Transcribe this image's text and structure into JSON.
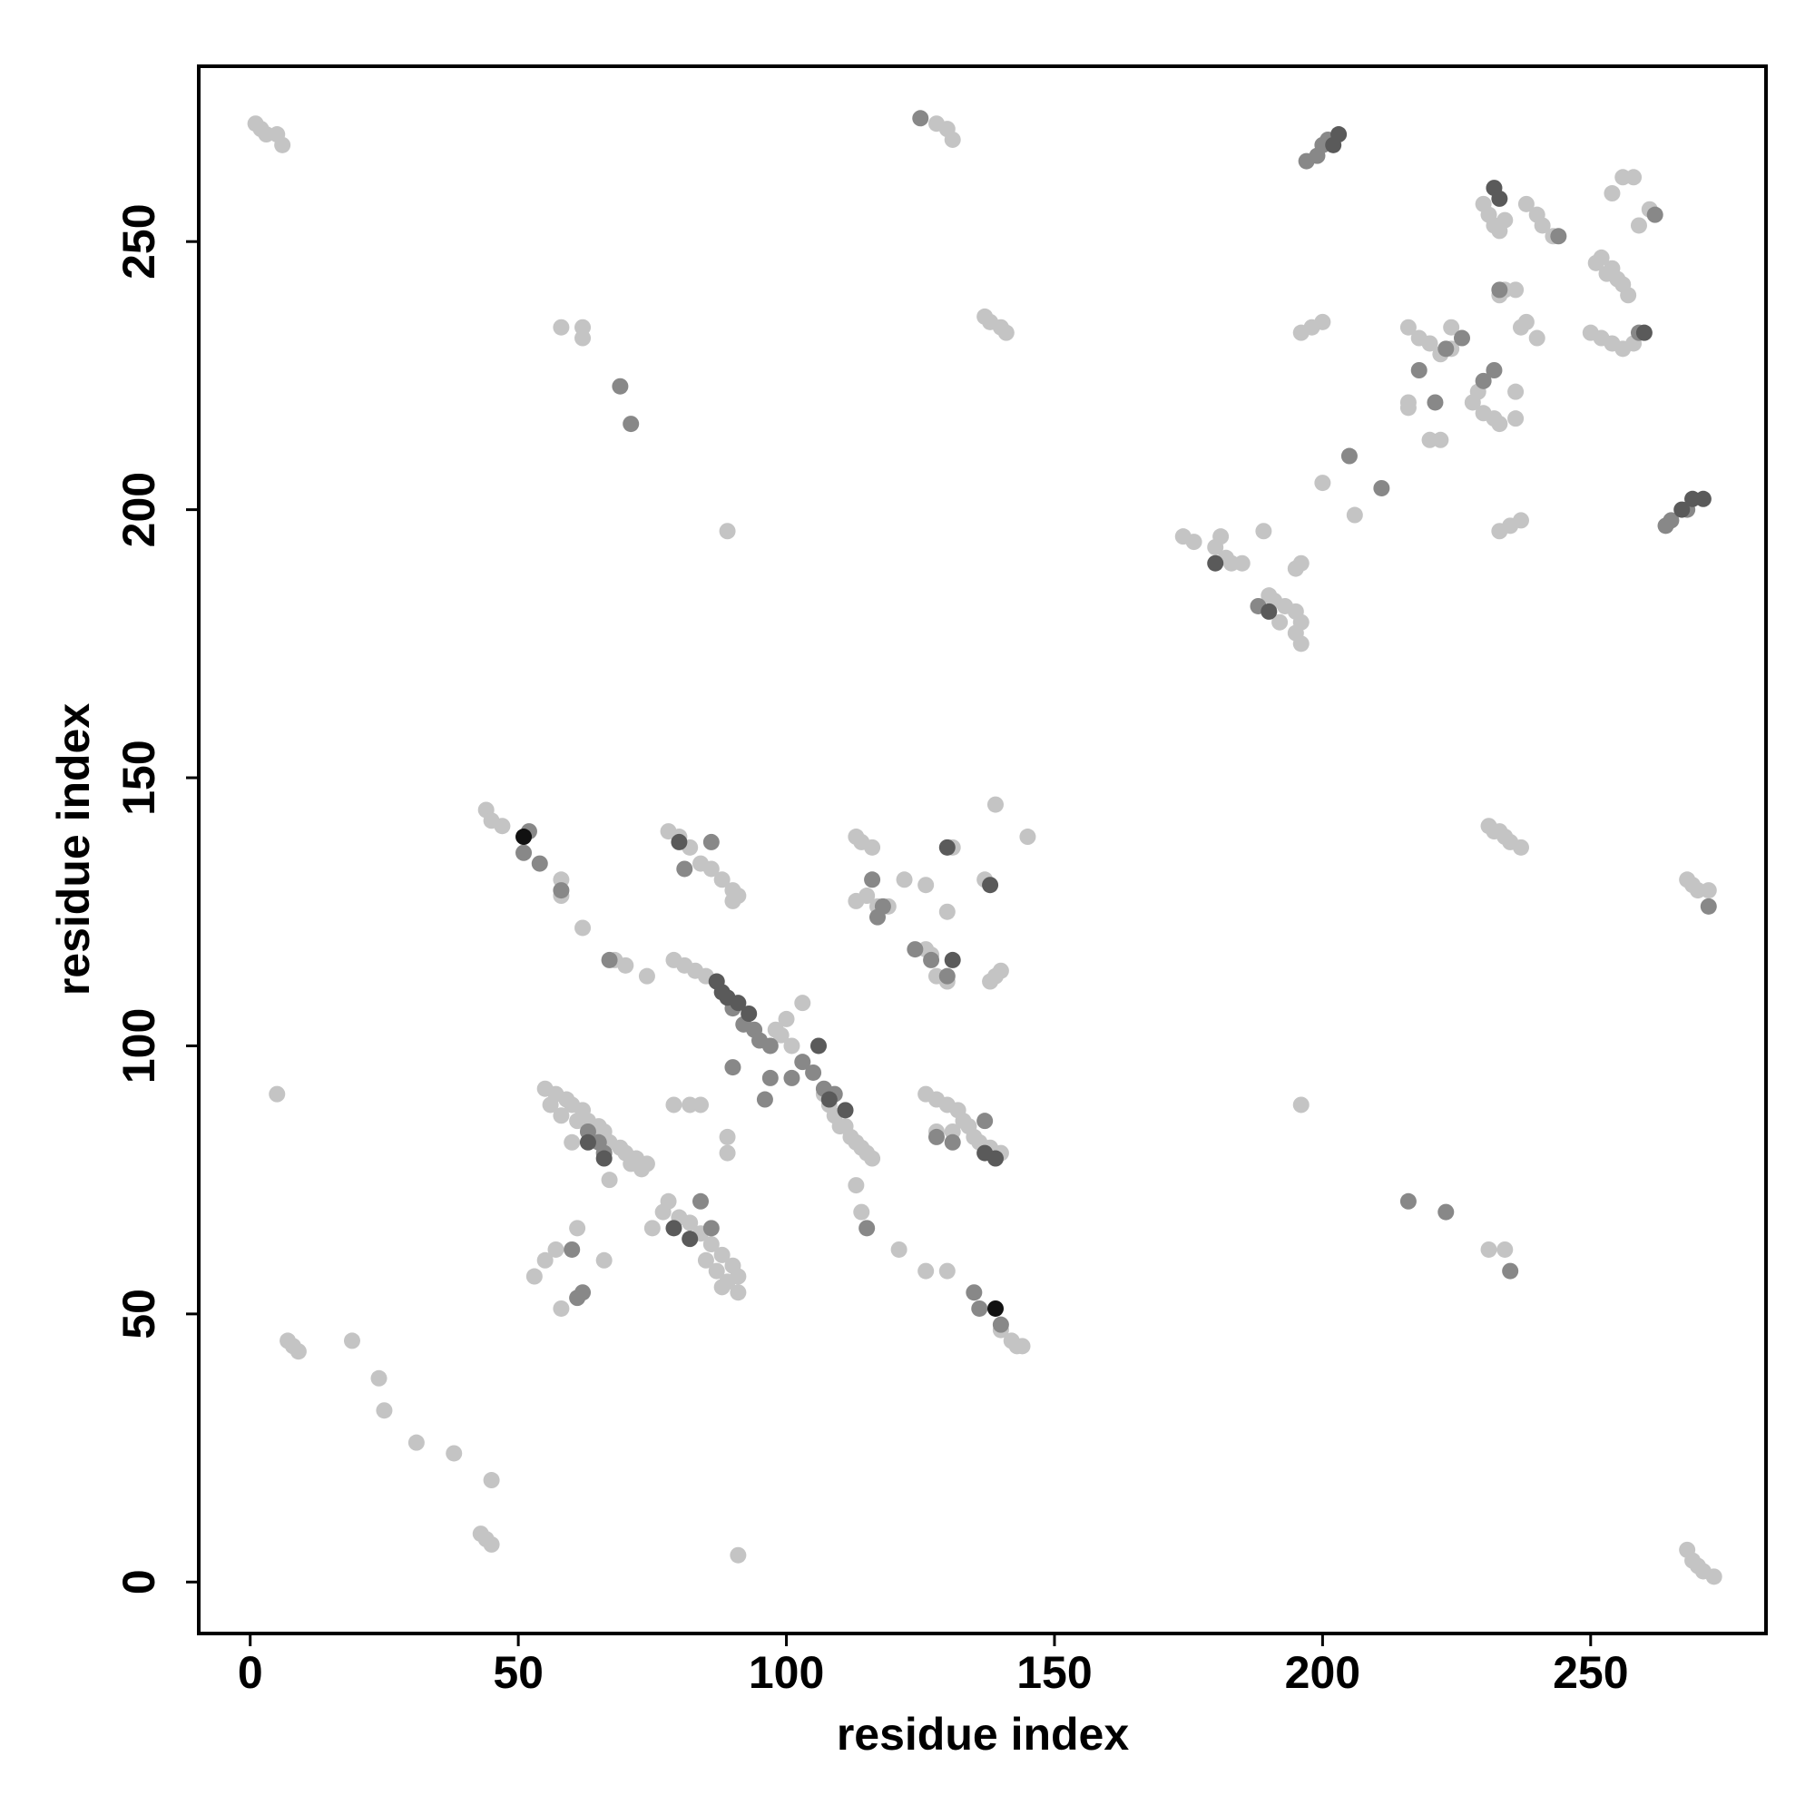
{
  "chart_data": {
    "type": "scatter",
    "x_label": "residue index",
    "y_label": "residue index",
    "xlim": [
      -9.6,
      282.7
    ],
    "ylim": [
      -9.6,
      282.7
    ],
    "xticks": [
      0,
      50,
      100,
      150,
      200,
      250
    ],
    "yticks": [
      0,
      50,
      100,
      150,
      200,
      250
    ],
    "series": [
      {
        "color": "#c4c4c4",
        "x": [
          1,
          2,
          3,
          5,
          6,
          128,
          130,
          131,
          137,
          138,
          140,
          141,
          58,
          62,
          62,
          89,
          5,
          7,
          8,
          9,
          19,
          24,
          25,
          31,
          38,
          45,
          43,
          44,
          45,
          91,
          44,
          45,
          47,
          58,
          58,
          62,
          68,
          74,
          70,
          55,
          57,
          59,
          60,
          62,
          63,
          65,
          66,
          67,
          69,
          70,
          72,
          74,
          56,
          58,
          61,
          64,
          71,
          73,
          67,
          60,
          53,
          55,
          57,
          58,
          61,
          66,
          75,
          77,
          78,
          80,
          82,
          84,
          86,
          88,
          90,
          85,
          87,
          89,
          91,
          88,
          91,
          79,
          81,
          83,
          85,
          78,
          80,
          82,
          84,
          86,
          88,
          90,
          91,
          90,
          79,
          82,
          84,
          89,
          89,
          103,
          100,
          99,
          101,
          98,
          111,
          112,
          113,
          114,
          115,
          116,
          113,
          114,
          121,
          126,
          130,
          140,
          142,
          143,
          144,
          113,
          114,
          116,
          113,
          115,
          117,
          119,
          122,
          126,
          130,
          131,
          137,
          139,
          138,
          140,
          126,
          128,
          130,
          127,
          126,
          128,
          130,
          132,
          133,
          134,
          135,
          136,
          138,
          140,
          128,
          131,
          139,
          145,
          108,
          109,
          110,
          107,
          196,
          174,
          176,
          180,
          182,
          183,
          181,
          185,
          189,
          190,
          191,
          193,
          195,
          196,
          195,
          196,
          192,
          195,
          196,
          196,
          198,
          200,
          200,
          206,
          216,
          216,
          220,
          222,
          216,
          218,
          220,
          222,
          224,
          224,
          228,
          229,
          230,
          232,
          233,
          236,
          236,
          233,
          235,
          237,
          230,
          231,
          232,
          233,
          234,
          238,
          240,
          241,
          243,
          238,
          237,
          240,
          251,
          252,
          253,
          254,
          255,
          256,
          257,
          254,
          256,
          258,
          261,
          250,
          252,
          254,
          256,
          258,
          259,
          234,
          236,
          233,
          231,
          232,
          234,
          235,
          237,
          233,
          268,
          269,
          270,
          272,
          268,
          269,
          270,
          271,
          273,
          231,
          234
        ],
        "y": [
          272,
          271,
          270,
          270,
          268,
          272,
          271,
          269,
          236,
          235,
          234,
          233,
          234,
          234,
          232,
          196,
          91,
          45,
          44,
          43,
          45,
          38,
          32,
          26,
          24,
          19,
          9,
          8,
          7,
          5,
          144,
          142,
          141,
          131,
          128,
          122,
          116,
          113,
          115,
          92,
          91,
          90,
          89,
          88,
          86,
          85,
          84,
          82,
          81,
          80,
          79,
          78,
          89,
          87,
          86,
          83,
          78,
          77,
          75,
          82,
          57,
          60,
          62,
          51,
          66,
          60,
          66,
          69,
          71,
          68,
          67,
          65,
          63,
          61,
          59,
          60,
          58,
          56,
          54,
          55,
          57,
          116,
          115,
          114,
          113,
          140,
          139,
          137,
          134,
          133,
          131,
          129,
          128,
          127,
          89,
          89,
          89,
          83,
          80,
          108,
          105,
          102,
          100,
          103,
          85,
          83,
          82,
          81,
          80,
          79,
          74,
          69,
          62,
          58,
          58,
          47,
          45,
          44,
          44,
          139,
          138,
          137,
          127,
          128,
          126,
          126,
          131,
          130,
          125,
          137,
          131,
          113,
          112,
          114,
          118,
          113,
          112,
          117,
          91,
          90,
          89,
          88,
          86,
          85,
          83,
          82,
          81,
          80,
          84,
          84,
          145,
          139,
          89,
          87,
          85,
          91,
          89,
          195,
          194,
          193,
          191,
          190,
          195,
          190,
          196,
          184,
          183,
          182,
          181,
          179,
          177,
          175,
          179,
          189,
          190,
          233,
          234,
          235,
          205,
          199,
          220,
          219,
          213,
          213,
          234,
          232,
          231,
          229,
          234,
          230,
          220,
          222,
          218,
          217,
          216,
          222,
          217,
          196,
          197,
          198,
          257,
          255,
          253,
          252,
          254,
          257,
          255,
          253,
          251,
          235,
          234,
          232,
          246,
          247,
          244,
          245,
          243,
          242,
          240,
          259,
          262,
          262,
          256,
          233,
          232,
          231,
          230,
          231,
          253,
          241,
          241,
          240,
          141,
          140,
          139,
          138,
          137,
          140,
          131,
          130,
          129,
          129,
          6,
          4,
          3,
          2,
          1,
          62,
          62
        ]
      },
      {
        "color": "#888888",
        "x": [
          69,
          71,
          125,
          52,
          51,
          54,
          58,
          67,
          65,
          63,
          66,
          60,
          62,
          61,
          86,
          81,
          90,
          92,
          94,
          95,
          97,
          97,
          90,
          96,
          101,
          103,
          105,
          107,
          109,
          116,
          117,
          118,
          115,
          124,
          127,
          130,
          131,
          137,
          135,
          136,
          140,
          128,
          84,
          86,
          218,
          221,
          223,
          226,
          230,
          232,
          233,
          216,
          223,
          235,
          244,
          259,
          262,
          265,
          268,
          264,
          272,
          199,
          200,
          201,
          197,
          205,
          211,
          188
        ],
        "y": [
          223,
          216,
          273,
          140,
          136,
          134,
          129,
          116,
          82,
          84,
          80,
          62,
          54,
          53,
          138,
          133,
          107,
          104,
          103,
          101,
          100,
          94,
          96,
          90,
          94,
          97,
          95,
          92,
          91,
          131,
          124,
          126,
          66,
          118,
          116,
          113,
          82,
          86,
          54,
          51,
          48,
          83,
          71,
          66,
          226,
          220,
          230,
          232,
          224,
          226,
          241,
          71,
          69,
          58,
          251,
          233,
          255,
          198,
          200,
          197,
          126,
          266,
          268,
          269,
          265,
          210,
          204,
          182
        ]
      },
      {
        "color": "#5a5a5a",
        "x": [
          80,
          87,
          89,
          91,
          93,
          88,
          106,
          108,
          111,
          130,
          131,
          138,
          137,
          180,
          190,
          203,
          202,
          232,
          233,
          260,
          269,
          271,
          267,
          63,
          66,
          79,
          82,
          139
        ],
        "y": [
          138,
          112,
          109,
          108,
          106,
          110,
          100,
          90,
          88,
          137,
          116,
          130,
          80,
          190,
          181,
          270,
          268,
          260,
          258,
          233,
          202,
          202,
          200,
          82,
          79,
          66,
          64,
          79
        ]
      },
      {
        "color": "#111111",
        "x": [
          51,
          139
        ],
        "y": [
          139,
          51
        ]
      }
    ]
  }
}
